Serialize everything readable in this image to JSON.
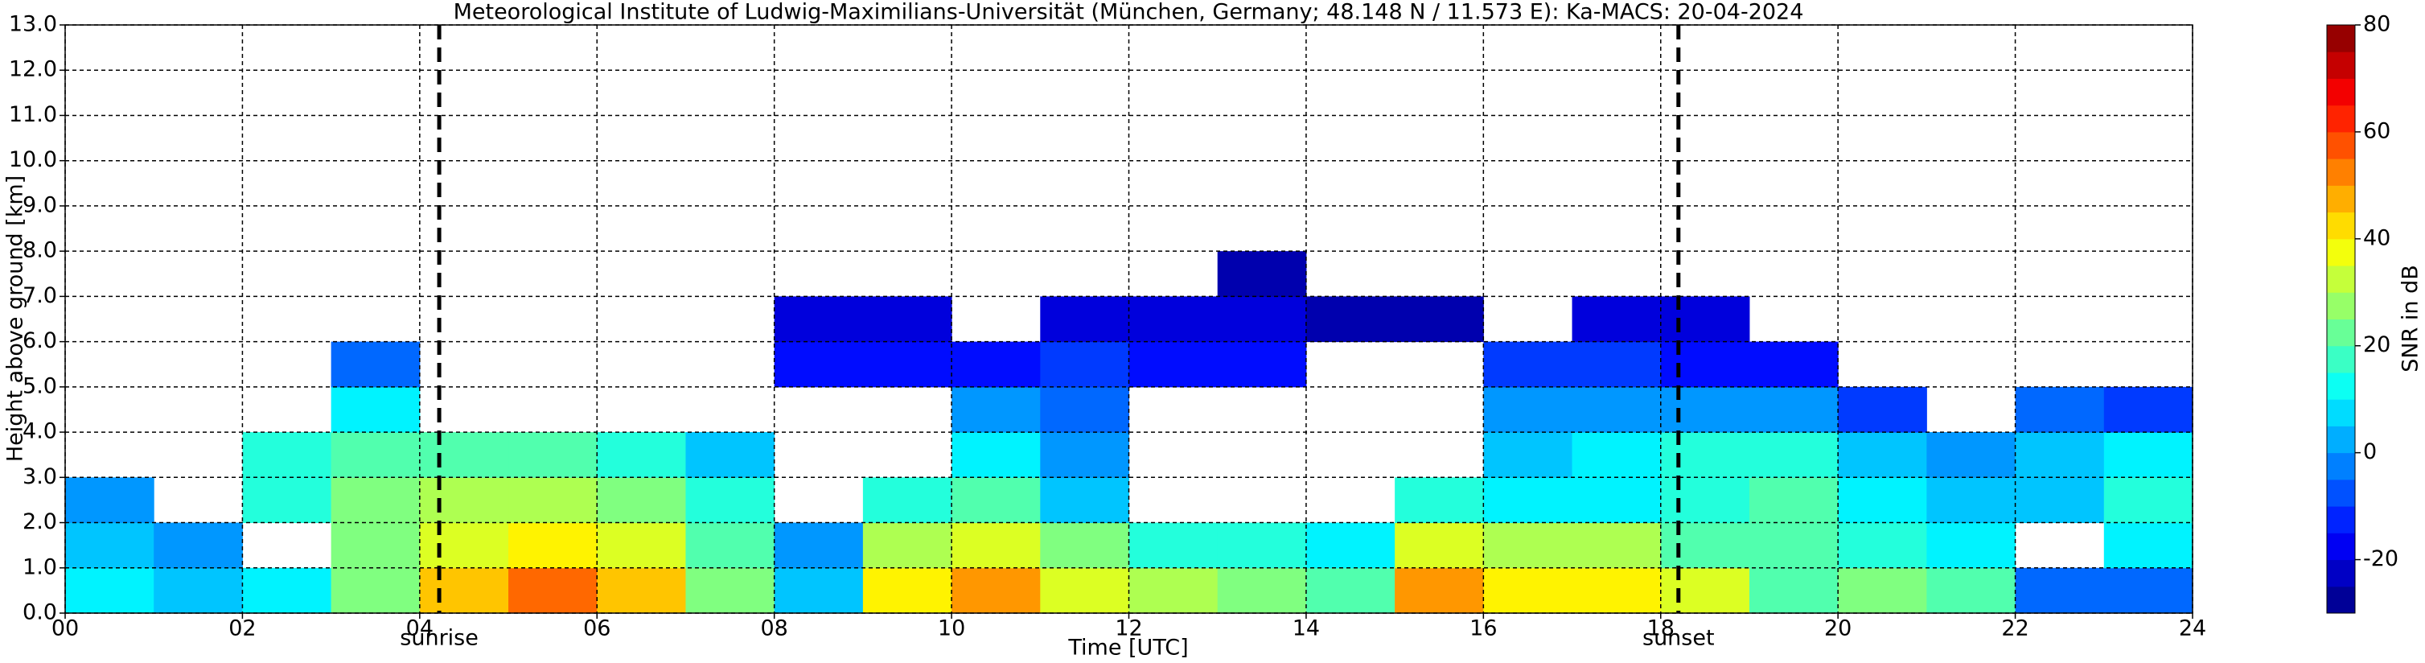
{
  "chart_data": {
    "type": "heatmap",
    "title": "Meteorological Institute of Ludwig-Maximilians-Universität (München, Germany; 48.148 N / 11.573 E):    Ka-MACS: 20-04-2024",
    "xlabel": "Time [UTC]",
    "ylabel": "Height above ground [km]",
    "xlim": [
      0,
      24
    ],
    "ylim": [
      0,
      13
    ],
    "xticks": [
      {
        "value": 0,
        "label": "00"
      },
      {
        "value": 2,
        "label": "02"
      },
      {
        "value": 4,
        "label": "04"
      },
      {
        "value": 6,
        "label": "06"
      },
      {
        "value": 8,
        "label": "08"
      },
      {
        "value": 10,
        "label": "10"
      },
      {
        "value": 12,
        "label": "12"
      },
      {
        "value": 14,
        "label": "14"
      },
      {
        "value": 16,
        "label": "16"
      },
      {
        "value": 18,
        "label": "18"
      },
      {
        "value": 20,
        "label": "20"
      },
      {
        "value": 22,
        "label": "22"
      },
      {
        "value": 24,
        "label": "24"
      }
    ],
    "yticks": [
      {
        "value": 0,
        "label": "0.0"
      },
      {
        "value": 1,
        "label": "1.0"
      },
      {
        "value": 2,
        "label": "2.0"
      },
      {
        "value": 3,
        "label": "3.0"
      },
      {
        "value": 4,
        "label": "4.0"
      },
      {
        "value": 5,
        "label": "5.0"
      },
      {
        "value": 6,
        "label": "6.0"
      },
      {
        "value": 7,
        "label": "7.0"
      },
      {
        "value": 8,
        "label": "8.0"
      },
      {
        "value": 9,
        "label": "9.0"
      },
      {
        "value": 10,
        "label": "10.0"
      },
      {
        "value": 11,
        "label": "11.0"
      },
      {
        "value": 12,
        "label": "12.0"
      },
      {
        "value": 13,
        "label": "13.0"
      }
    ],
    "grid": true,
    "colormap": "jet",
    "x_edges": [
      0,
      1,
      2,
      3,
      4,
      5,
      6,
      7,
      8,
      9,
      10,
      11,
      12,
      13,
      14,
      15,
      16,
      17,
      18,
      19,
      20,
      21,
      22,
      23,
      24
    ],
    "y_edges": [
      0,
      1,
      2,
      3,
      4,
      5,
      6,
      7,
      8
    ],
    "z": [
      [
        10,
        5,
        10,
        25,
        45,
        55,
        45,
        25,
        5,
        40,
        50,
        35,
        30,
        25,
        20,
        50,
        40,
        40,
        35,
        20,
        25,
        20,
        -5,
        -5
      ],
      [
        5,
        0,
        null,
        25,
        35,
        40,
        35,
        20,
        0,
        30,
        35,
        25,
        15,
        15,
        10,
        35,
        30,
        30,
        20,
        20,
        15,
        10,
        null,
        10
      ],
      [
        0,
        null,
        15,
        25,
        30,
        30,
        25,
        15,
        null,
        15,
        20,
        5,
        null,
        null,
        null,
        15,
        10,
        10,
        15,
        20,
        10,
        5,
        5,
        15
      ],
      [
        null,
        null,
        15,
        20,
        20,
        20,
        15,
        5,
        null,
        null,
        10,
        0,
        null,
        null,
        null,
        null,
        5,
        10,
        15,
        15,
        5,
        0,
        5,
        10
      ],
      [
        null,
        null,
        null,
        10,
        null,
        null,
        null,
        null,
        null,
        null,
        0,
        -5,
        null,
        null,
        null,
        null,
        0,
        0,
        0,
        0,
        -10,
        null,
        -5,
        -10
      ],
      [
        null,
        null,
        null,
        -5,
        null,
        null,
        null,
        null,
        -15,
        -15,
        -15,
        -10,
        -15,
        -15,
        null,
        null,
        -10,
        -10,
        -15,
        -15,
        null,
        null,
        null,
        null
      ],
      [
        null,
        null,
        null,
        null,
        null,
        null,
        null,
        null,
        -20,
        -20,
        null,
        -20,
        -20,
        -20,
        -25,
        -25,
        null,
        -20,
        -20,
        null,
        null,
        null,
        null,
        null
      ],
      [
        null,
        null,
        null,
        null,
        null,
        null,
        null,
        null,
        null,
        null,
        null,
        null,
        null,
        -25,
        null,
        null,
        null,
        null,
        null,
        null,
        null,
        null,
        null,
        null
      ]
    ],
    "colorbar": {
      "label": "SNR in dB",
      "lim": [
        -30,
        80
      ],
      "ticks": [
        -20,
        0,
        20,
        40,
        60,
        80
      ]
    },
    "annotations": [
      {
        "text": "sunrise",
        "x": 4.22
      },
      {
        "text": "sunset",
        "x": 18.2
      }
    ]
  }
}
